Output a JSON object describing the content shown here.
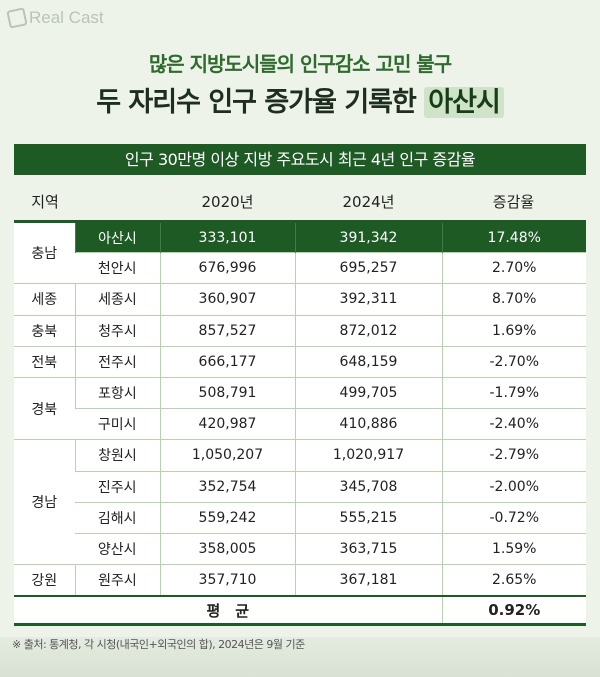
{
  "logo": "Real Cast",
  "title": {
    "line1": "많은 지방도시들의 인구감소 고민 불구",
    "line2": "두 자리수 인구 증가율 기록한 ",
    "highlight": "아산시"
  },
  "table_title": "인구 30만명 이상 지방 주요도시 최근 4년 인구 증감율",
  "headers": [
    "지역",
    "2020년",
    "2024년",
    "증감율"
  ],
  "regions": [
    "충남",
    "세종",
    "충북",
    "전북",
    "경북",
    "경남",
    "강원"
  ],
  "rows": [
    {
      "city": "아산시",
      "y2020": "333,101",
      "y2024": "391,342",
      "rate": "17.48%"
    },
    {
      "city": "천안시",
      "y2020": "676,996",
      "y2024": "695,257",
      "rate": "2.70%"
    },
    {
      "city": "세종시",
      "y2020": "360,907",
      "y2024": "392,311",
      "rate": "8.70%"
    },
    {
      "city": "청주시",
      "y2020": "857,527",
      "y2024": "872,012",
      "rate": "1.69%"
    },
    {
      "city": "전주시",
      "y2020": "666,177",
      "y2024": "648,159",
      "rate": "-2.70%"
    },
    {
      "city": "포항시",
      "y2020": "508,791",
      "y2024": "499,705",
      "rate": "-1.79%"
    },
    {
      "city": "구미시",
      "y2020": "420,987",
      "y2024": "410,886",
      "rate": "-2.40%"
    },
    {
      "city": "창원시",
      "y2020": "1,050,207",
      "y2024": "1,020,917",
      "rate": "-2.79%"
    },
    {
      "city": "진주시",
      "y2020": "352,754",
      "y2024": "345,708",
      "rate": "-2.00%"
    },
    {
      "city": "김해시",
      "y2020": "559,242",
      "y2024": "555,215",
      "rate": "-0.72%"
    },
    {
      "city": "양산시",
      "y2020": "358,005",
      "y2024": "363,715",
      "rate": "1.59%"
    },
    {
      "city": "원주시",
      "y2020": "357,710",
      "y2024": "367,181",
      "rate": "2.65%"
    }
  ],
  "average": {
    "label": "평　균",
    "rate": "0.92%"
  },
  "source": "※ 출처: 통계청, 각 시청(내국인+외국인의 합), 2024년은 9월 기준"
}
